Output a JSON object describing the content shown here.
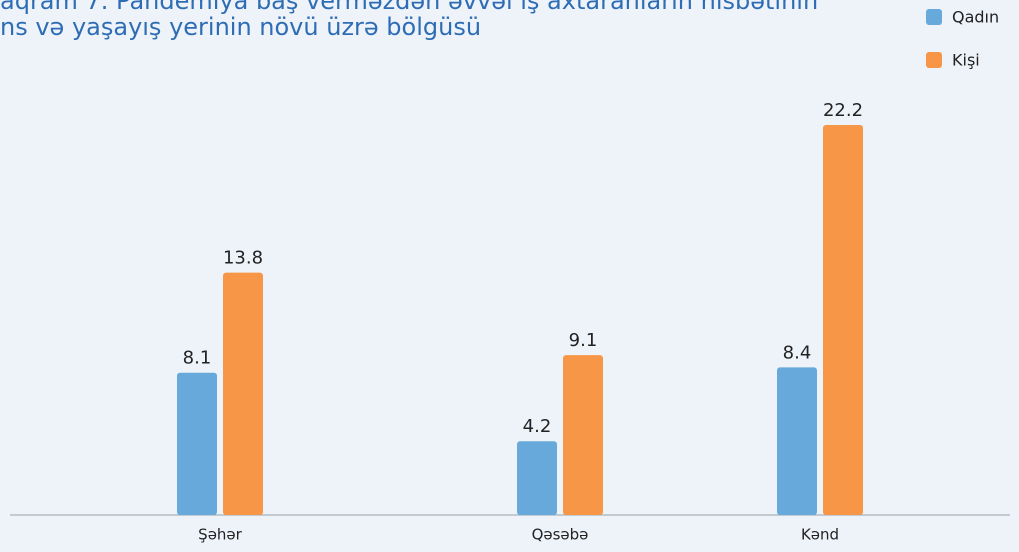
{
  "chart_data": {
    "type": "bar",
    "title": [
      "aqram 7. Pandemiya baş verməzdən əvvəl iş axtaranların nisbətinin",
      "ns və yaşayış yerinin növü üzrə bölgüsü"
    ],
    "categories": [
      "Şəhər",
      "Qəsəbə",
      "Kənd"
    ],
    "series": [
      {
        "name": "Qadın",
        "color": "#67a9da",
        "values": [
          8.1,
          4.2,
          8.4
        ]
      },
      {
        "name": "Kişi",
        "color": "#f79646",
        "values": [
          13.8,
          9.1,
          22.2
        ]
      }
    ]
  }
}
